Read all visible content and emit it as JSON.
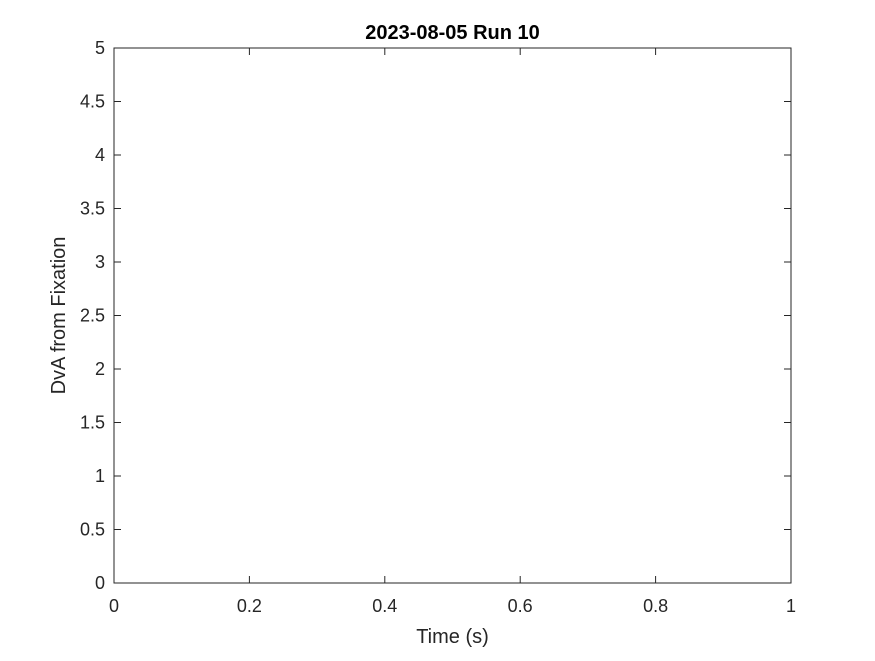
{
  "chart_data": {
    "type": "line",
    "title": "2023-08-05 Run 10",
    "xlabel": "Time (s)",
    "ylabel": "DvA from Fixation",
    "xlim": [
      0,
      1
    ],
    "ylim": [
      0,
      5
    ],
    "x_ticks": [
      0,
      0.2,
      0.4,
      0.6,
      0.8,
      1
    ],
    "x_tick_labels": [
      "0",
      "0.2",
      "0.4",
      "0.6",
      "0.8",
      "1"
    ],
    "y_ticks": [
      0,
      0.5,
      1,
      1.5,
      2,
      2.5,
      3,
      3.5,
      4,
      4.5,
      5
    ],
    "y_tick_labels": [
      "0",
      "0.5",
      "1",
      "1.5",
      "2",
      "2.5",
      "3",
      "3.5",
      "4",
      "4.5",
      "5"
    ],
    "grid": false,
    "series": []
  }
}
